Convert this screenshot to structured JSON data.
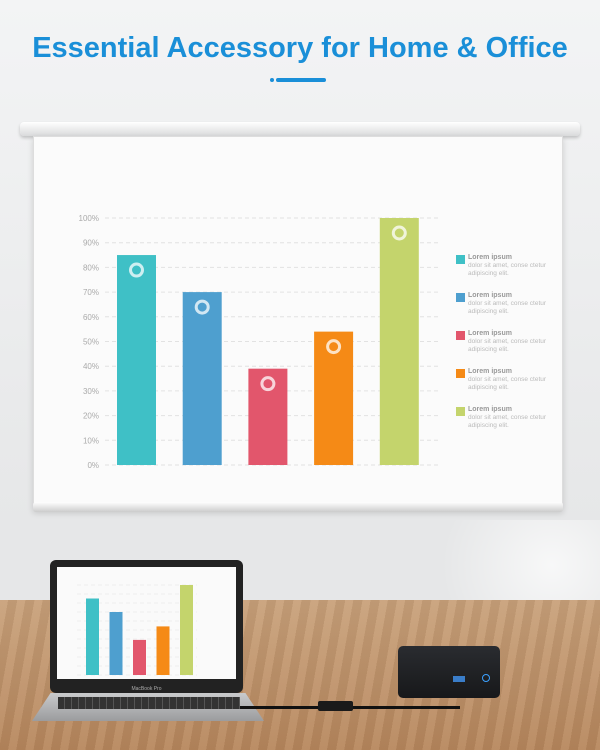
{
  "header": {
    "title": "Essential Accessory for Home & Office"
  },
  "colors": {
    "accent": "#1a8fd8"
  },
  "chart_data": {
    "type": "bar",
    "categories": [
      "",
      "",
      "",
      "",
      ""
    ],
    "values": [
      85,
      70,
      39,
      54,
      100
    ],
    "colors": [
      "#3fc0c6",
      "#4e9fcf",
      "#e2566c",
      "#f58a16",
      "#c4d46c"
    ],
    "bar_icons": [
      "gear-icon",
      "document-icon",
      "globe-icon",
      "user-icon",
      "wifi-icon"
    ],
    "yticks": [
      "0%",
      "10%",
      "20%",
      "30%",
      "40%",
      "50%",
      "60%",
      "70%",
      "80%",
      "90%",
      "100%"
    ],
    "ylim": [
      0,
      100
    ],
    "grid": true,
    "legend_placement": "right",
    "legend": [
      {
        "title": "Lorem ipsum",
        "text": "dolor sit amet, conse ctetur adipiscing elit."
      },
      {
        "title": "Lorem ipsum",
        "text": "dolor sit amet, conse ctetur adipiscing elit."
      },
      {
        "title": "Lorem ipsum",
        "text": "dolor sit amet, conse ctetur adipiscing elit."
      },
      {
        "title": "Lorem ipsum",
        "text": "dolor sit amet, conse ctetur adipiscing elit."
      },
      {
        "title": "Lorem ipsum",
        "text": "dolor sit amet, conse ctetur adipiscing elit."
      }
    ]
  },
  "laptop": {
    "label": "MacBook Pro"
  }
}
